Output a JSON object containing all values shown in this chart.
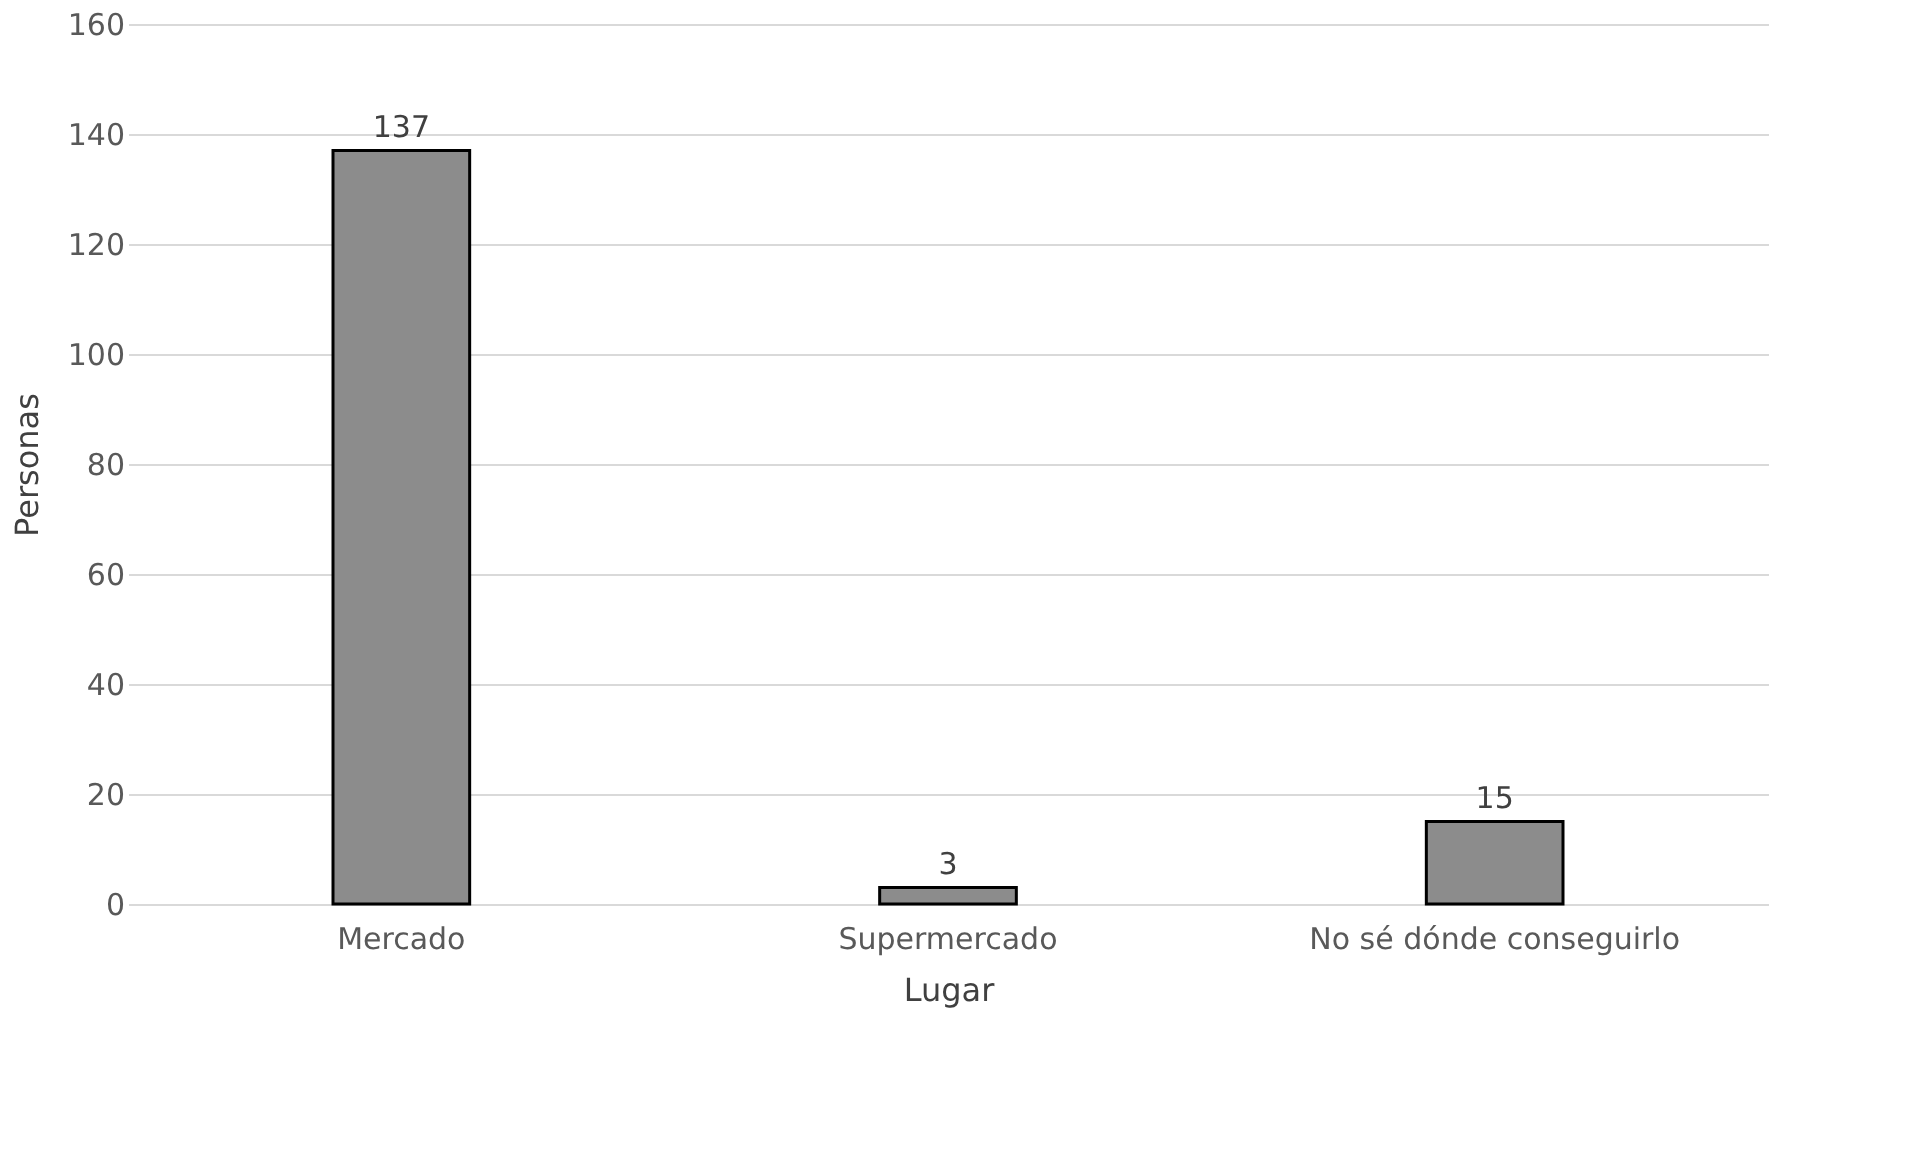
{
  "chart_data": {
    "type": "bar",
    "xlabel": "Lugar",
    "ylabel": "Personas",
    "categories": [
      "Mercado",
      "Supermercado",
      "No sé dónde conseguirlo"
    ],
    "values": [
      137,
      3,
      15
    ],
    "color": "#8c8c8c",
    "ylim": [
      0,
      160
    ],
    "yticks": [
      0,
      20,
      40,
      60,
      80,
      100,
      120,
      140,
      160
    ],
    "grid": "y",
    "data_labels": true
  }
}
